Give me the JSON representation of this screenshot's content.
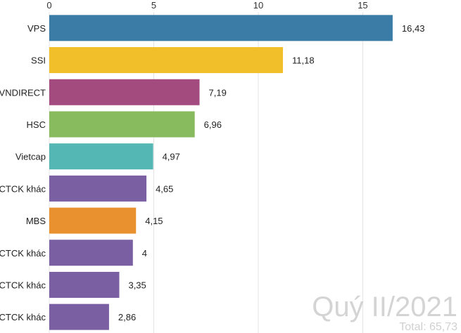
{
  "chart_data": {
    "type": "bar",
    "orientation": "horizontal",
    "categories": [
      "VPS",
      "SSI",
      "VNDIRECT",
      "HSC",
      "Vietcap",
      "CTCK khác",
      "MBS",
      "CTCK khác",
      "CTCK khác",
      "CTCK khác"
    ],
    "values": [
      16.43,
      11.18,
      7.19,
      6.96,
      4.97,
      4.65,
      4.15,
      4,
      3.35,
      2.86
    ],
    "value_labels": [
      "16,43",
      "11,18",
      "7,19",
      "6,96",
      "4,97",
      "4,65",
      "4,15",
      "4",
      "3,35",
      "2,86"
    ],
    "colors": [
      "#3a7ca5",
      "#f0bf2a",
      "#a34a7e",
      "#88bb5e",
      "#55b7b3",
      "#7a5fa3",
      "#e8912e",
      "#7a5fa3",
      "#7a5fa3",
      "#7a5fa3"
    ],
    "xticks": [
      0,
      5,
      10,
      15
    ],
    "xlim": [
      0,
      19.7
    ],
    "grid": true,
    "axis_position": "top",
    "title": "",
    "xlabel": "",
    "ylabel": ""
  },
  "overlay": {
    "period": "Quý II/2021",
    "total": "Total: 65,73"
  }
}
